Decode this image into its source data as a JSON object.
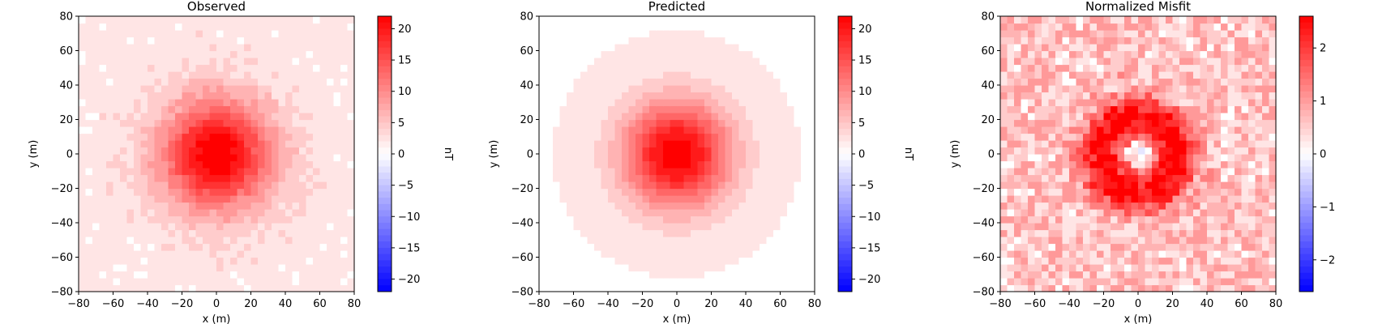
{
  "chart_data": [
    {
      "type": "heatmap",
      "title": "Observed",
      "xlabel": "x (m)",
      "ylabel": "y (m)",
      "xlim": [
        -80,
        80
      ],
      "ylim": [
        -80,
        80
      ],
      "xticks": [
        -80,
        -60,
        -40,
        -20,
        0,
        20,
        40,
        60,
        80
      ],
      "yticks": [
        -80,
        -60,
        -40,
        -20,
        0,
        20,
        40,
        60,
        80
      ],
      "field": {
        "kind": "gaussian_anomaly",
        "peak": 22,
        "center": [
          0,
          0
        ],
        "sigma": 22,
        "background": 2.0,
        "noise": 1.2
      },
      "colorbar": {
        "label": "nT",
        "range": [
          -22,
          22
        ],
        "ticks": [
          -20,
          -15,
          -10,
          -5,
          0,
          5,
          10,
          15,
          20
        ],
        "colormap": "bwr"
      }
    },
    {
      "type": "heatmap",
      "title": "Predicted",
      "xlabel": "x (m)",
      "ylabel": "y (m)",
      "xlim": [
        -80,
        80
      ],
      "ylim": [
        -80,
        80
      ],
      "xticks": [
        -80,
        -60,
        -40,
        -20,
        0,
        20,
        40,
        60,
        80
      ],
      "yticks": [
        -80,
        -60,
        -40,
        -20,
        0,
        20,
        40,
        60,
        80
      ],
      "field": {
        "kind": "gaussian_anomaly",
        "peak": 22,
        "center": [
          0,
          0
        ],
        "sigma": 22,
        "background": 1.0,
        "noise": 0
      },
      "colorbar": {
        "label": "nT",
        "range": [
          -22,
          22
        ],
        "ticks": [
          -20,
          -15,
          -10,
          -5,
          0,
          5,
          10,
          15,
          20
        ],
        "colormap": "bwr"
      }
    },
    {
      "type": "heatmap",
      "title": "Normalized Misfit",
      "xlabel": "x (m)",
      "ylabel": "y (m)",
      "xlim": [
        -80,
        80
      ],
      "ylim": [
        -80,
        80
      ],
      "xticks": [
        -80,
        -60,
        -40,
        -20,
        0,
        20,
        40,
        60,
        80
      ],
      "yticks": [
        -80,
        -60,
        -40,
        -20,
        0,
        20,
        40,
        60,
        80
      ],
      "field": {
        "kind": "ring_misfit",
        "peak": 2.4,
        "center": [
          0,
          0
        ],
        "ring_radius": 22,
        "ring_width": 9,
        "background": 0.6,
        "noise": 0.5
      },
      "colorbar": {
        "label": "",
        "range": [
          -2.6,
          2.6
        ],
        "ticks": [
          -2,
          -1,
          0,
          1,
          2
        ],
        "colormap": "bwr"
      }
    }
  ]
}
